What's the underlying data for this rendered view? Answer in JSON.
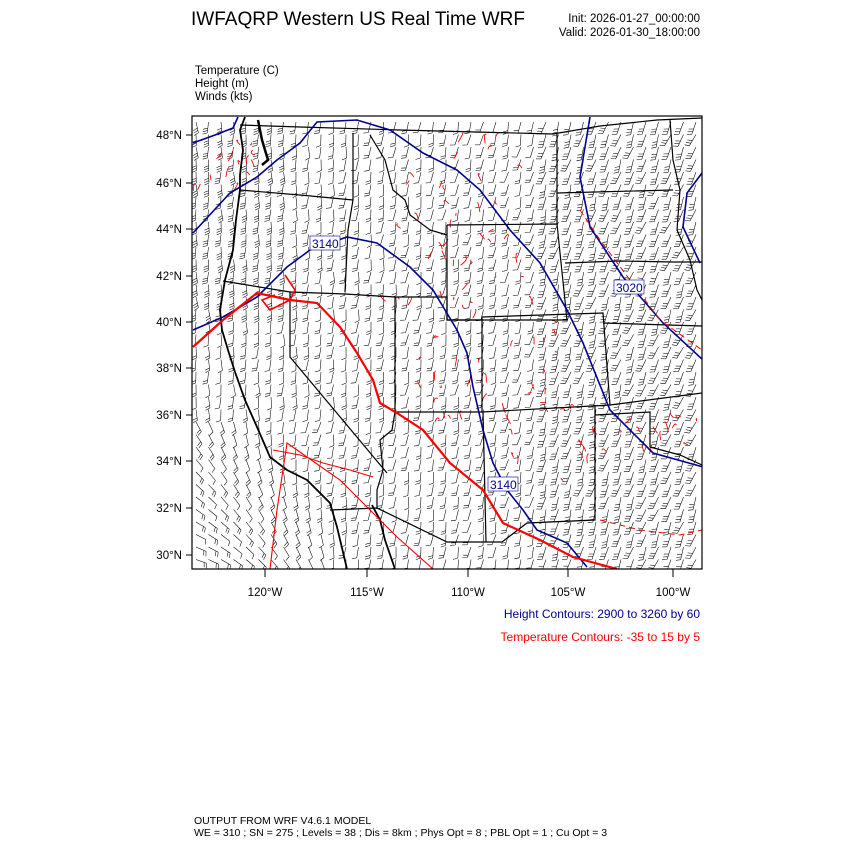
{
  "header": {
    "title": "IWFAQRP Western US Real Time WRF",
    "init": "Init: 2026-01-27_00:00:00",
    "valid": "Valid: 2026-01-30_18:00:00"
  },
  "fields": [
    "Temperature   (C)",
    "Height   (m)",
    "Winds   (kts)"
  ],
  "map": {
    "lat_labels": [
      "48°N",
      "46°N",
      "44°N",
      "42°N",
      "40°N",
      "38°N",
      "36°N",
      "34°N",
      "32°N",
      "30°N"
    ],
    "lon_labels": [
      "120°W",
      "115°W",
      "110°W",
      "105°W",
      "100°W"
    ],
    "height_contour_labels": [
      "3140",
      "3020",
      "3140"
    ],
    "colors": {
      "height": "#000090",
      "temperature": "#ff0000",
      "wind": "#000000",
      "borders": "#000000"
    }
  },
  "legend": {
    "height": "Height Contours: 2900 to 3260 by 60",
    "temperature": "Temperature Contours: -35 to 15 by 5"
  },
  "footer": {
    "line1": "OUTPUT FROM WRF V4.6.1 MODEL",
    "line2": "WE = 310 ; SN = 275 ; Levels = 38 ; Dis = 8km ; Phys Opt = 8 ; PBL Opt = 1 ; Cu Opt = 3"
  }
}
